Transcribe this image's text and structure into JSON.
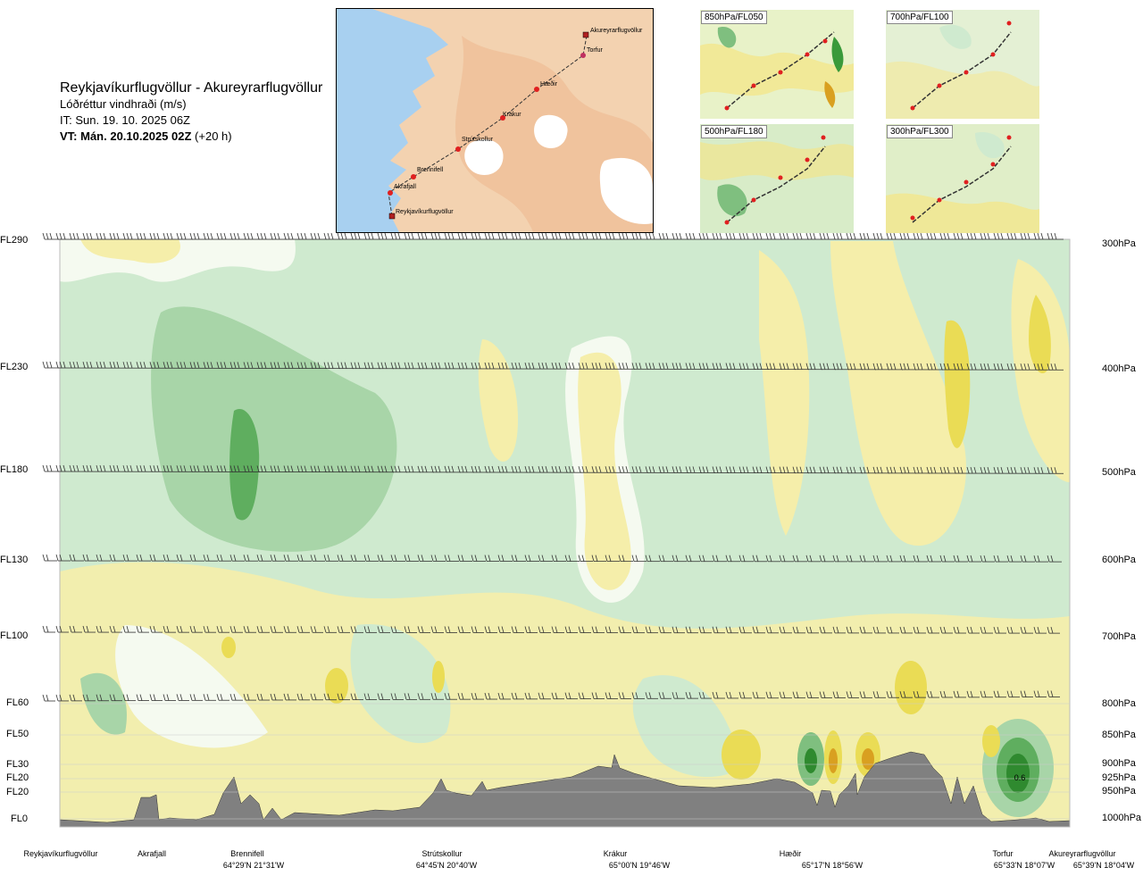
{
  "header": {
    "route_title": "Reykjavíkurflugvöllur - Akureyrarflugvöllur",
    "variable": "Lóðréttur vindhraði (m/s)",
    "issue_time": "IT: Sun. 19. 10. 2025 06Z",
    "valid_time_bold": "VT: Mán. 20.10.2025 02Z",
    "valid_time_offset": "(+20 h)"
  },
  "route_map": {
    "waypoints": [
      {
        "name": "Akureyrarflugvöllur"
      },
      {
        "name": "Torfur"
      },
      {
        "name": "Hæðir"
      },
      {
        "name": "Krákur"
      },
      {
        "name": "Strútskollur"
      },
      {
        "name": "Brennifell"
      },
      {
        "name": "Akrafjall"
      },
      {
        "name": "Reykjavíkurflugvöllur"
      }
    ]
  },
  "insets": [
    {
      "label": "850hPa/FL050"
    },
    {
      "label": "700hPa/FL100"
    },
    {
      "label": "500hPa/FL180"
    },
    {
      "label": "300hPa/FL300"
    }
  ],
  "colors": {
    "strong_up": "#3a9a3a",
    "mid_up": "#7fbf7f",
    "weak_up": "#a8d5a8",
    "faint_up": "#cfeacf",
    "neutral": "#f5faf0",
    "faint_down": "#f5eeaa",
    "mid_down": "#eadc55",
    "strong_down": "#d9a020",
    "terrain": "#808080",
    "ocean": "#a8d0f0",
    "land": "#f5d5b5"
  },
  "chart_data": {
    "type": "heatmap",
    "title": "Lóðréttur vindhraði (m/s)",
    "flight_levels": [
      "FL290",
      "FL230",
      "FL180",
      "FL130",
      "FL100",
      "FL60",
      "FL50",
      "FL30",
      "FL20",
      "FL20",
      "FL0"
    ],
    "pressure_levels": [
      "300hPa",
      "400hPa",
      "500hPa",
      "600hPa",
      "700hPa",
      "800hPa",
      "850hPa",
      "900hPa",
      "925hPa",
      "950hPa",
      "1000hPa"
    ],
    "pressure_values_hpa": [
      300,
      400,
      500,
      600,
      700,
      800,
      850,
      900,
      925,
      950,
      1000
    ],
    "x_stations": [
      {
        "name": "Reykjavíkurflugvöllur",
        "coord": ""
      },
      {
        "name": "Akrafjall",
        "coord": ""
      },
      {
        "name": "Brennifell",
        "coord": "64°29'N 21°31'W"
      },
      {
        "name": "Strútskollur",
        "coord": "64°45'N 20°40'W"
      },
      {
        "name": "Krákur",
        "coord": "65°00'N 19°46'W"
      },
      {
        "name": "Hæðir",
        "coord": "65°17'N 18°56'W"
      },
      {
        "name": "Torfur",
        "coord": "65°33'N 18°07'W"
      },
      {
        "name": "Akureyrarflugvöllur",
        "coord": "65°39'N 18°04'W"
      }
    ],
    "annotations": [
      {
        "text": "0.6"
      }
    ]
  }
}
